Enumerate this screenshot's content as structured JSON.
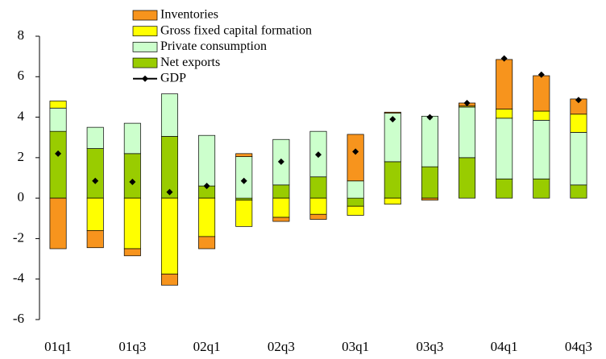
{
  "chart_data": {
    "type": "bar",
    "stacked": true,
    "categories": [
      "01q1",
      null,
      "01q3",
      null,
      "02q1",
      null,
      "02q3",
      null,
      "03q1",
      null,
      "03q3",
      null,
      "04q1",
      null,
      "04q3"
    ],
    "series": [
      {
        "name": "Inventories",
        "color": "#f7941d",
        "values": [
          -2.5,
          -0.85,
          -0.35,
          -0.55,
          -0.6,
          0.15,
          -0.2,
          -0.25,
          2.3,
          0.05,
          -0.1,
          0.15,
          2.45,
          1.75,
          0.75
        ]
      },
      {
        "name": "Gross fixed capital formation",
        "color": "#ffff00",
        "values": [
          0.35,
          -1.6,
          -2.5,
          -3.75,
          -1.9,
          -1.3,
          -0.95,
          -0.8,
          -0.45,
          -0.3,
          0,
          0.05,
          0.45,
          0.45,
          0.9
        ]
      },
      {
        "name": "Private consumption",
        "color": "#ccffcc",
        "values": [
          1.15,
          1.05,
          1.5,
          2.1,
          2.5,
          2.05,
          2.25,
          2.25,
          0.85,
          2.4,
          2.5,
          2.5,
          3.0,
          2.9,
          2.6
        ]
      },
      {
        "name": "Net exports",
        "color": "#99cc00",
        "values": [
          3.3,
          2.45,
          2.2,
          3.05,
          0.6,
          -0.1,
          0.65,
          1.05,
          -0.4,
          1.8,
          1.55,
          2.0,
          0.95,
          0.95,
          0.65
        ]
      },
      {
        "name": "GDP",
        "color": "#000000",
        "type": "line",
        "values": [
          2.2,
          0.85,
          0.8,
          0.3,
          0.6,
          0.85,
          1.8,
          2.15,
          2.3,
          3.9,
          4.0,
          4.7,
          6.9,
          6.1,
          4.85
        ]
      }
    ],
    "ylim": [
      -6,
      8
    ],
    "yticks": [
      -6,
      -4,
      -2,
      0,
      2,
      4,
      6,
      8
    ],
    "grid": false
  }
}
